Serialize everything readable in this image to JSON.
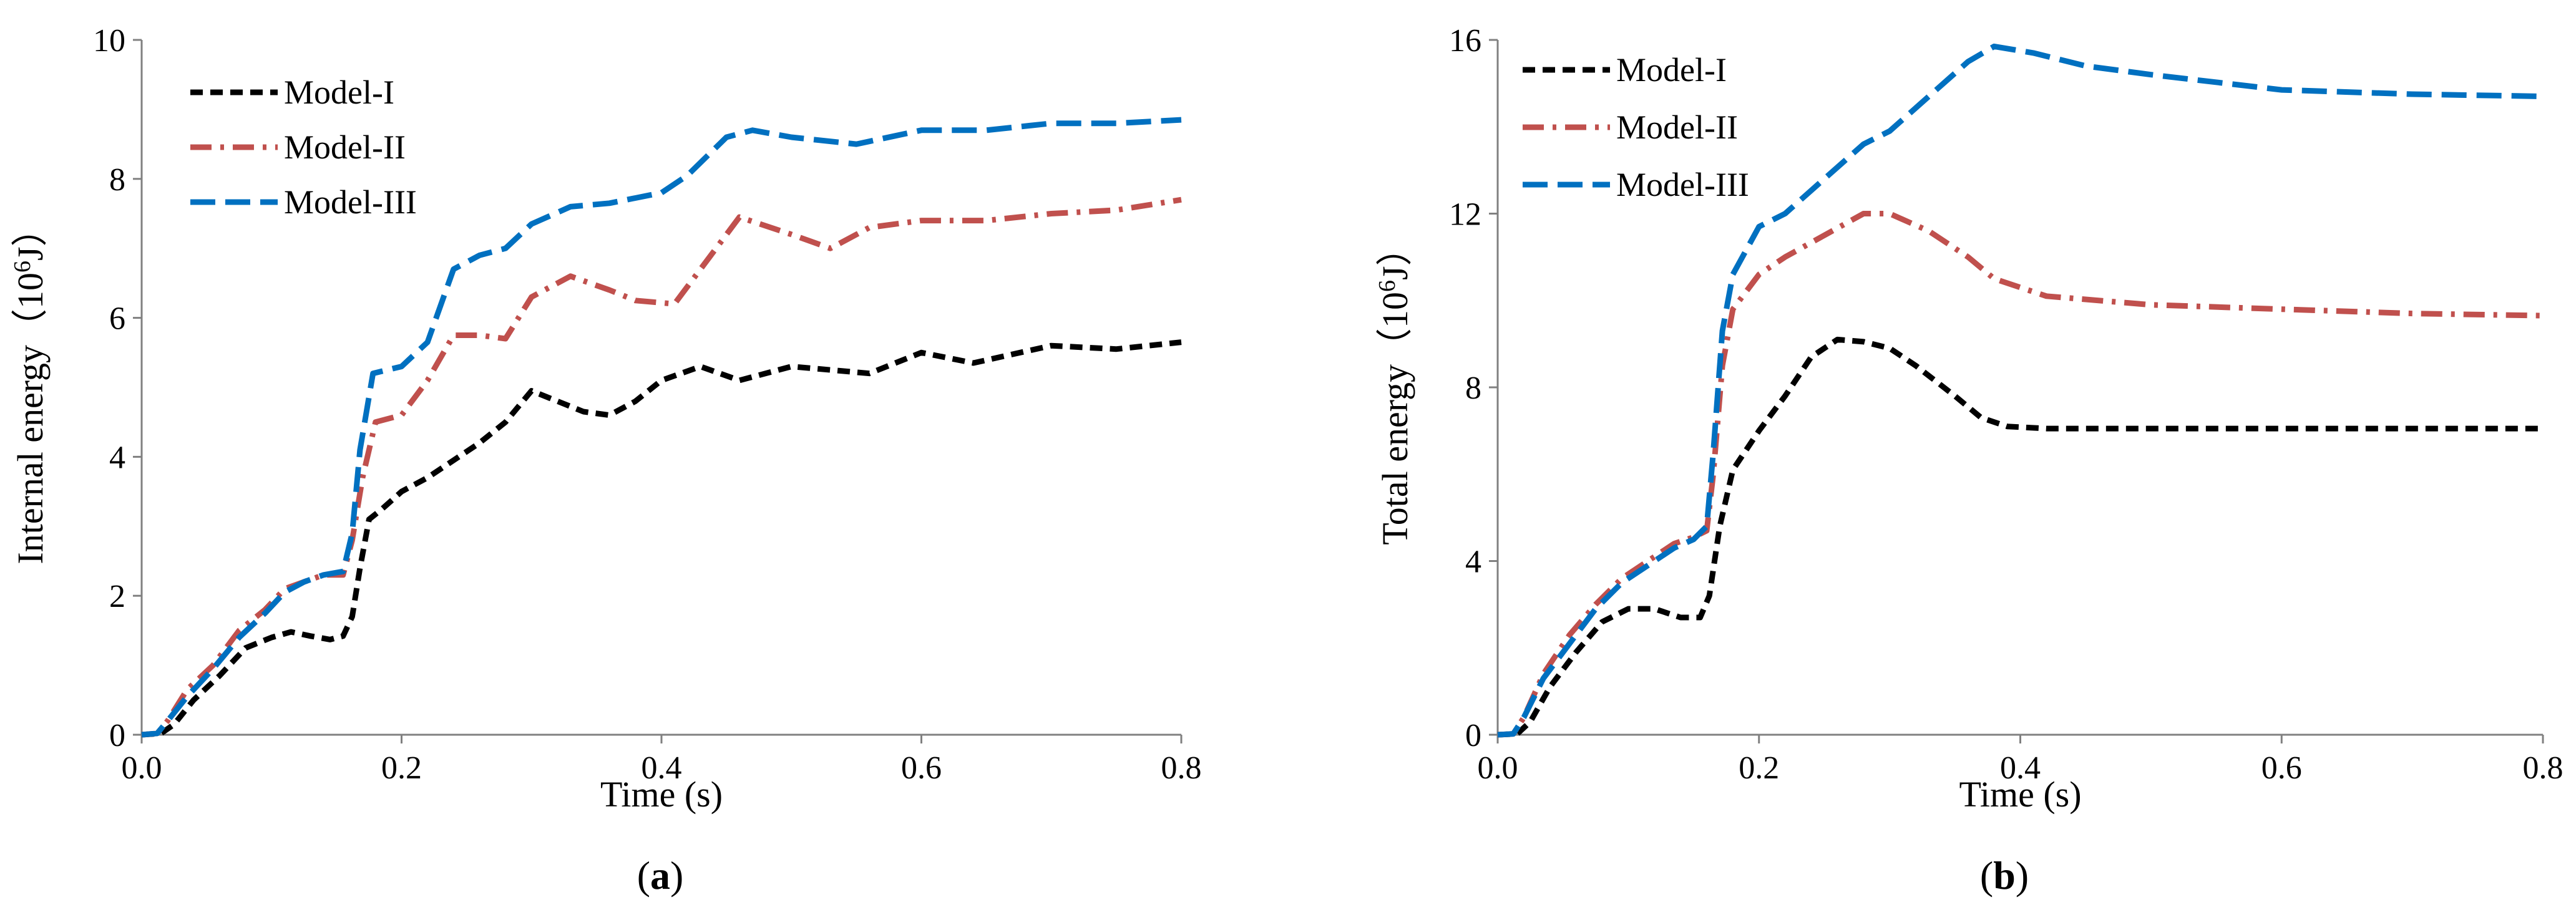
{
  "chart_data": [
    {
      "id": "a",
      "type": "line",
      "panel_label_open": "(",
      "panel_label_letter": "a",
      "panel_label_close": ")",
      "xlabel": "Time (s)",
      "ylabel_prefix": "Internal energy（10",
      "ylabel_sup": "6",
      "ylabel_suffix": "J）",
      "xlim": [
        0,
        0.8
      ],
      "ylim": [
        0,
        10
      ],
      "xticks": [
        0,
        0.2,
        0.4,
        0.6,
        0.8
      ],
      "xtick_labels": [
        "0.0",
        "0.2",
        "0.4",
        "0.6",
        "0.8"
      ],
      "yticks": [
        0,
        2,
        4,
        6,
        8,
        10
      ],
      "ytick_labels": [
        "0",
        "2",
        "4",
        "6",
        "8",
        "10"
      ],
      "legend_position": "top-left",
      "grid": false,
      "series": [
        {
          "name": "Model-I",
          "color": "#000000",
          "dash": "short-dash",
          "x": [
            0,
            0.015,
            0.025,
            0.04,
            0.06,
            0.08,
            0.1,
            0.115,
            0.13,
            0.145,
            0.155,
            0.162,
            0.168,
            0.175,
            0.185,
            0.2,
            0.22,
            0.24,
            0.26,
            0.28,
            0.3,
            0.32,
            0.34,
            0.36,
            0.38,
            0.4,
            0.43,
            0.46,
            0.5,
            0.53,
            0.56,
            0.6,
            0.64,
            0.7,
            0.75,
            0.8
          ],
          "values": [
            0,
            0.02,
            0.15,
            0.5,
            0.85,
            1.25,
            1.4,
            1.48,
            1.42,
            1.37,
            1.42,
            1.7,
            2.4,
            3.1,
            3.25,
            3.5,
            3.7,
            3.95,
            4.2,
            4.5,
            4.95,
            4.8,
            4.65,
            4.6,
            4.8,
            5.1,
            5.3,
            5.1,
            5.3,
            5.25,
            5.2,
            5.5,
            5.35,
            5.6,
            5.55,
            5.65
          ]
        },
        {
          "name": "Model-II",
          "color": "#c0504d",
          "dash": "dash-dot",
          "x": [
            0,
            0.012,
            0.02,
            0.035,
            0.055,
            0.075,
            0.095,
            0.11,
            0.125,
            0.14,
            0.155,
            0.162,
            0.17,
            0.18,
            0.2,
            0.22,
            0.24,
            0.26,
            0.28,
            0.3,
            0.33,
            0.36,
            0.38,
            0.41,
            0.43,
            0.46,
            0.5,
            0.53,
            0.56,
            0.6,
            0.65,
            0.7,
            0.75,
            0.8
          ],
          "values": [
            0,
            0.02,
            0.2,
            0.65,
            1.0,
            1.5,
            1.8,
            2.1,
            2.2,
            2.3,
            2.3,
            2.8,
            3.7,
            4.5,
            4.6,
            5.1,
            5.75,
            5.75,
            5.7,
            6.3,
            6.6,
            6.4,
            6.25,
            6.2,
            6.7,
            7.45,
            7.2,
            7.0,
            7.3,
            7.4,
            7.4,
            7.5,
            7.55,
            7.7
          ]
        },
        {
          "name": "Model-III",
          "color": "#0070c0",
          "dash": "long-dash",
          "x": [
            0,
            0.012,
            0.02,
            0.035,
            0.055,
            0.075,
            0.095,
            0.11,
            0.125,
            0.14,
            0.155,
            0.162,
            0.168,
            0.178,
            0.2,
            0.22,
            0.24,
            0.26,
            0.28,
            0.3,
            0.33,
            0.36,
            0.4,
            0.42,
            0.45,
            0.47,
            0.5,
            0.55,
            0.6,
            0.65,
            0.7,
            0.75,
            0.8
          ],
          "values": [
            0,
            0.02,
            0.2,
            0.55,
            0.95,
            1.4,
            1.75,
            2.05,
            2.2,
            2.3,
            2.35,
            2.9,
            4.1,
            5.2,
            5.3,
            5.65,
            6.7,
            6.9,
            7.0,
            7.35,
            7.6,
            7.65,
            7.8,
            8.05,
            8.6,
            8.7,
            8.6,
            8.5,
            8.7,
            8.7,
            8.8,
            8.8,
            8.85
          ]
        }
      ]
    },
    {
      "id": "b",
      "type": "line",
      "panel_label_open": "(",
      "panel_label_letter": "b",
      "panel_label_close": ")",
      "xlabel": "Time (s)",
      "ylabel_prefix": "Total energy（10",
      "ylabel_sup": "6",
      "ylabel_suffix": "J）",
      "xlim": [
        0,
        0.8
      ],
      "ylim": [
        0,
        16
      ],
      "xticks": [
        0,
        0.2,
        0.4,
        0.6,
        0.8
      ],
      "xtick_labels": [
        "0.0",
        "0.2",
        "0.4",
        "0.6",
        "0.8"
      ],
      "yticks": [
        0,
        4,
        8,
        12,
        16
      ],
      "ytick_labels": [
        "0",
        "4",
        "8",
        "12",
        "16"
      ],
      "legend_position": "top-left",
      "grid": false,
      "series": [
        {
          "name": "Model-I",
          "color": "#000000",
          "dash": "short-dash",
          "x": [
            0,
            0.015,
            0.025,
            0.04,
            0.06,
            0.08,
            0.1,
            0.12,
            0.14,
            0.155,
            0.162,
            0.17,
            0.18,
            0.2,
            0.22,
            0.24,
            0.26,
            0.28,
            0.3,
            0.32,
            0.35,
            0.37,
            0.39,
            0.42,
            0.5,
            0.6,
            0.7,
            0.8
          ],
          "values": [
            0,
            0.02,
            0.3,
            1.1,
            1.9,
            2.6,
            2.9,
            2.9,
            2.7,
            2.7,
            3.2,
            4.8,
            6.1,
            7.0,
            7.8,
            8.7,
            9.1,
            9.05,
            8.9,
            8.5,
            7.8,
            7.3,
            7.1,
            7.05,
            7.05,
            7.05,
            7.05,
            7.05
          ]
        },
        {
          "name": "Model-II",
          "color": "#c0504d",
          "dash": "dash-dot",
          "x": [
            0,
            0.012,
            0.02,
            0.035,
            0.055,
            0.075,
            0.095,
            0.115,
            0.135,
            0.15,
            0.16,
            0.165,
            0.172,
            0.18,
            0.2,
            0.22,
            0.25,
            0.28,
            0.3,
            0.33,
            0.36,
            0.38,
            0.42,
            0.5,
            0.6,
            0.7,
            0.8
          ],
          "values": [
            0,
            0.02,
            0.4,
            1.4,
            2.3,
            3.0,
            3.6,
            4.0,
            4.4,
            4.55,
            4.7,
            6.0,
            8.5,
            9.8,
            10.6,
            11.0,
            11.5,
            12.0,
            12.0,
            11.6,
            11.0,
            10.5,
            10.1,
            9.9,
            9.8,
            9.7,
            9.65
          ]
        },
        {
          "name": "Model-III",
          "color": "#0070c0",
          "dash": "long-dash",
          "x": [
            0,
            0.012,
            0.02,
            0.035,
            0.055,
            0.075,
            0.095,
            0.115,
            0.135,
            0.15,
            0.16,
            0.165,
            0.172,
            0.18,
            0.2,
            0.22,
            0.25,
            0.28,
            0.3,
            0.33,
            0.36,
            0.38,
            0.41,
            0.45,
            0.5,
            0.6,
            0.7,
            0.8
          ],
          "values": [
            0,
            0.02,
            0.4,
            1.3,
            2.1,
            2.9,
            3.5,
            3.9,
            4.3,
            4.5,
            4.8,
            6.5,
            9.3,
            10.6,
            11.7,
            12.0,
            12.8,
            13.6,
            13.9,
            14.7,
            15.5,
            15.85,
            15.7,
            15.4,
            15.2,
            14.85,
            14.75,
            14.7
          ]
        }
      ]
    }
  ]
}
